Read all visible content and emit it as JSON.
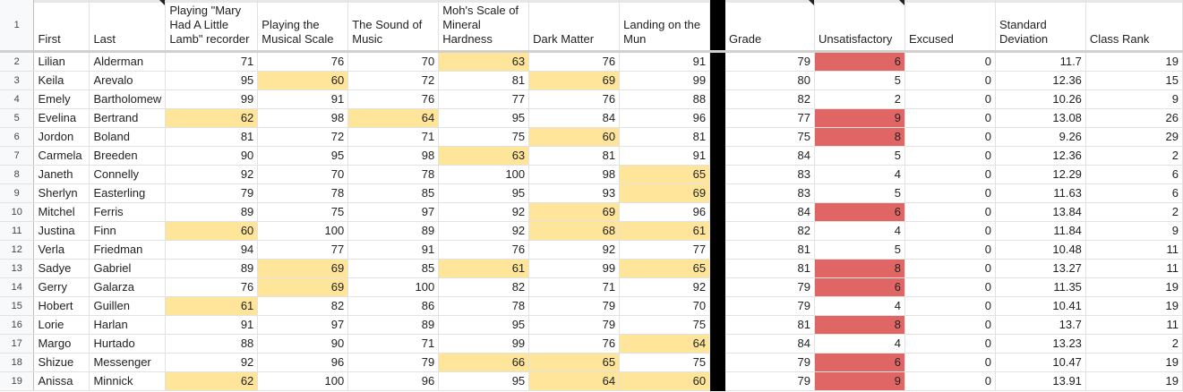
{
  "colors": {
    "low_score": "#ffe59a",
    "unsatisfactory_high": "#e06666",
    "divider": "#000000",
    "header_bg": "#f8f9fa"
  },
  "header_row_number": "1",
  "columns": [
    {
      "key": "first",
      "label": "First",
      "type": "text"
    },
    {
      "key": "last",
      "label": "Last",
      "type": "text",
      "note": true
    },
    {
      "key": "recorder",
      "label": "Playing \"Mary Had A Little Lamb\" recorder",
      "type": "num"
    },
    {
      "key": "scale",
      "label": "Playing the Musical Scale",
      "type": "num"
    },
    {
      "key": "sound",
      "label": "The Sound of Music",
      "type": "num"
    },
    {
      "key": "moh",
      "label": "Moh's Scale of Mineral Hardness",
      "type": "num"
    },
    {
      "key": "dark",
      "label": "Dark Matter",
      "type": "num"
    },
    {
      "key": "mun",
      "label": "Landing on the Mun",
      "type": "num"
    },
    {
      "key": "divider",
      "label": "",
      "type": "divider"
    },
    {
      "key": "grade",
      "label": "Grade",
      "type": "num",
      "note": true
    },
    {
      "key": "unsat",
      "label": "Unsatisfactory",
      "type": "num",
      "note": true
    },
    {
      "key": "excused",
      "label": "Excused",
      "type": "num"
    },
    {
      "key": "stdev",
      "label": "Standard Deviation",
      "type": "num"
    },
    {
      "key": "rank",
      "label": "Class Rank",
      "type": "num"
    }
  ],
  "rows": [
    {
      "n": "2",
      "first": "Lilian",
      "last": "Alderman",
      "recorder": "71",
      "scale": "76",
      "sound": "70",
      "moh": "63",
      "dark": "76",
      "mun": "91",
      "grade": "79",
      "unsat": "6",
      "excused": "0",
      "stdev": "11.7",
      "rank": "19"
    },
    {
      "n": "3",
      "first": "Keila",
      "last": "Arevalo",
      "recorder": "95",
      "scale": "60",
      "sound": "72",
      "moh": "81",
      "dark": "69",
      "mun": "99",
      "grade": "80",
      "unsat": "5",
      "excused": "0",
      "stdev": "12.36",
      "rank": "15"
    },
    {
      "n": "4",
      "first": "Emely",
      "last": "Bartholomew",
      "recorder": "99",
      "scale": "91",
      "sound": "76",
      "moh": "77",
      "dark": "76",
      "mun": "88",
      "grade": "82",
      "unsat": "2",
      "excused": "0",
      "stdev": "10.26",
      "rank": "9"
    },
    {
      "n": "5",
      "first": "Evelina",
      "last": "Bertrand",
      "recorder": "62",
      "scale": "98",
      "sound": "64",
      "moh": "95",
      "dark": "84",
      "mun": "96",
      "grade": "77",
      "unsat": "9",
      "excused": "0",
      "stdev": "13.08",
      "rank": "26"
    },
    {
      "n": "6",
      "first": "Jordon",
      "last": "Boland",
      "recorder": "81",
      "scale": "72",
      "sound": "71",
      "moh": "75",
      "dark": "60",
      "mun": "81",
      "grade": "75",
      "unsat": "8",
      "excused": "0",
      "stdev": "9.26",
      "rank": "29"
    },
    {
      "n": "7",
      "first": "Carmela",
      "last": "Breeden",
      "recorder": "90",
      "scale": "95",
      "sound": "98",
      "moh": "63",
      "dark": "81",
      "mun": "91",
      "grade": "84",
      "unsat": "5",
      "excused": "0",
      "stdev": "12.36",
      "rank": "2"
    },
    {
      "n": "8",
      "first": "Janeth",
      "last": "Connelly",
      "recorder": "92",
      "scale": "70",
      "sound": "78",
      "moh": "100",
      "dark": "98",
      "mun": "65",
      "grade": "83",
      "unsat": "4",
      "excused": "0",
      "stdev": "12.29",
      "rank": "6"
    },
    {
      "n": "9",
      "first": "Sherlyn",
      "last": "Easterling",
      "recorder": "79",
      "scale": "78",
      "sound": "85",
      "moh": "95",
      "dark": "93",
      "mun": "69",
      "grade": "83",
      "unsat": "5",
      "excused": "0",
      "stdev": "11.63",
      "rank": "6"
    },
    {
      "n": "10",
      "first": "Mitchel",
      "last": "Ferris",
      "recorder": "89",
      "scale": "75",
      "sound": "97",
      "moh": "92",
      "dark": "69",
      "mun": "96",
      "grade": "84",
      "unsat": "6",
      "excused": "0",
      "stdev": "13.84",
      "rank": "2"
    },
    {
      "n": "11",
      "first": "Justina",
      "last": "Finn",
      "recorder": "60",
      "scale": "100",
      "sound": "89",
      "moh": "92",
      "dark": "68",
      "mun": "61",
      "grade": "82",
      "unsat": "4",
      "excused": "0",
      "stdev": "11.84",
      "rank": "9"
    },
    {
      "n": "12",
      "first": "Verla",
      "last": "Friedman",
      "recorder": "94",
      "scale": "77",
      "sound": "91",
      "moh": "76",
      "dark": "92",
      "mun": "77",
      "grade": "81",
      "unsat": "5",
      "excused": "0",
      "stdev": "10.48",
      "rank": "11"
    },
    {
      "n": "13",
      "first": "Sadye",
      "last": "Gabriel",
      "recorder": "89",
      "scale": "69",
      "sound": "85",
      "moh": "61",
      "dark": "99",
      "mun": "65",
      "grade": "81",
      "unsat": "8",
      "excused": "0",
      "stdev": "13.27",
      "rank": "11"
    },
    {
      "n": "14",
      "first": "Gerry",
      "last": "Galarza",
      "recorder": "76",
      "scale": "69",
      "sound": "100",
      "moh": "82",
      "dark": "71",
      "mun": "92",
      "grade": "79",
      "unsat": "6",
      "excused": "0",
      "stdev": "11.35",
      "rank": "19"
    },
    {
      "n": "15",
      "first": "Hobert",
      "last": "Guillen",
      "recorder": "61",
      "scale": "82",
      "sound": "86",
      "moh": "78",
      "dark": "79",
      "mun": "70",
      "grade": "79",
      "unsat": "4",
      "excused": "0",
      "stdev": "10.41",
      "rank": "19"
    },
    {
      "n": "16",
      "first": "Lorie",
      "last": "Harlan",
      "recorder": "91",
      "scale": "97",
      "sound": "89",
      "moh": "95",
      "dark": "79",
      "mun": "75",
      "grade": "81",
      "unsat": "8",
      "excused": "0",
      "stdev": "13.7",
      "rank": "11"
    },
    {
      "n": "17",
      "first": "Margo",
      "last": "Hurtado",
      "recorder": "88",
      "scale": "90",
      "sound": "71",
      "moh": "99",
      "dark": "76",
      "mun": "64",
      "grade": "84",
      "unsat": "4",
      "excused": "0",
      "stdev": "13.23",
      "rank": "2"
    },
    {
      "n": "18",
      "first": "Shizue",
      "last": "Messenger",
      "recorder": "92",
      "scale": "96",
      "sound": "79",
      "moh": "66",
      "dark": "65",
      "mun": "75",
      "grade": "79",
      "unsat": "6",
      "excused": "0",
      "stdev": "10.47",
      "rank": "19"
    },
    {
      "n": "19",
      "first": "Anissa",
      "last": "Minnick",
      "recorder": "62",
      "scale": "100",
      "sound": "96",
      "moh": "95",
      "dark": "64",
      "mun": "60",
      "grade": "79",
      "unsat": "9",
      "excused": "0",
      "stdev": "13.91",
      "rank": "19"
    }
  ]
}
